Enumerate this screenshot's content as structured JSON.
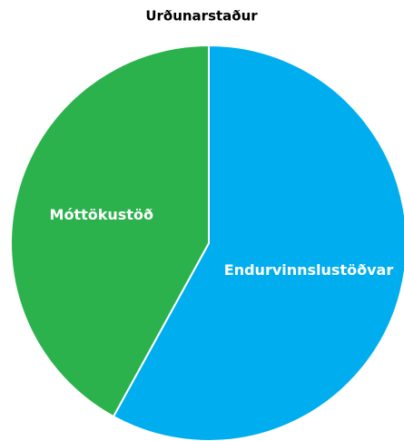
{
  "chart_data": {
    "type": "pie",
    "title": "Urðunarstaður",
    "categories": [
      "Endurvinnslustöðvar",
      "Móttökustöð"
    ],
    "values": [
      58,
      42
    ],
    "colors": [
      "#00aeef",
      "#2bb24c"
    ]
  }
}
